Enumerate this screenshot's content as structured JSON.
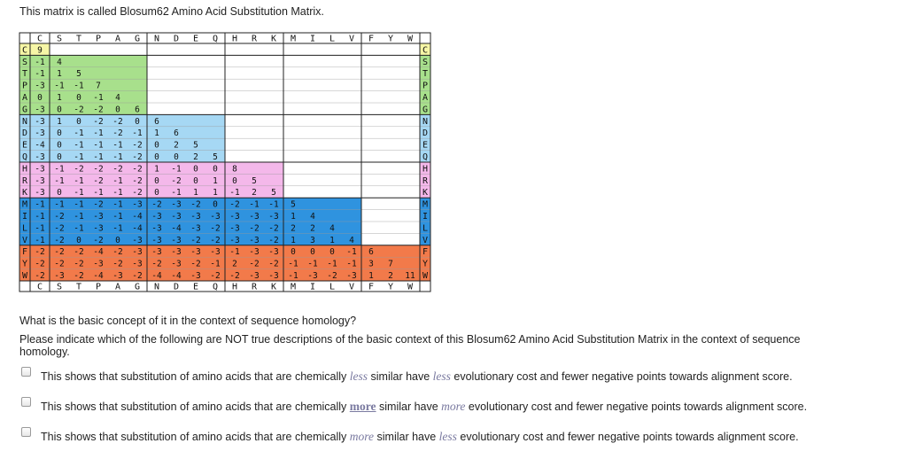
{
  "intro": "This matrix is called Blosum62 Amino Acid Substitution Matrix.",
  "matrix": {
    "order": [
      "C",
      "S",
      "T",
      "P",
      "A",
      "G",
      "N",
      "D",
      "E",
      "Q",
      "H",
      "R",
      "K",
      "M",
      "I",
      "L",
      "V",
      "F",
      "Y",
      "W"
    ],
    "rows": [
      [
        9
      ],
      [
        -1,
        4
      ],
      [
        -1,
        1,
        5
      ],
      [
        -3,
        -1,
        -1,
        7
      ],
      [
        0,
        1,
        0,
        -1,
        4
      ],
      [
        -3,
        0,
        -2,
        -2,
        0,
        6
      ],
      [
        -3,
        1,
        0,
        -2,
        -2,
        0,
        6
      ],
      [
        -3,
        0,
        -1,
        -1,
        -2,
        -1,
        1,
        6
      ],
      [
        -4,
        0,
        -1,
        -1,
        -1,
        -2,
        0,
        2,
        5
      ],
      [
        -3,
        0,
        -1,
        -1,
        -1,
        -2,
        0,
        0,
        2,
        5
      ],
      [
        -3,
        -1,
        -2,
        -2,
        -2,
        -2,
        1,
        -1,
        0,
        0,
        8
      ],
      [
        -3,
        -1,
        -1,
        -2,
        -1,
        -2,
        0,
        -2,
        0,
        1,
        0,
        5
      ],
      [
        -3,
        0,
        -1,
        -1,
        -1,
        -2,
        0,
        -1,
        1,
        1,
        -1,
        2,
        5
      ],
      [
        -1,
        -1,
        -1,
        -2,
        -1,
        -3,
        -2,
        -3,
        -2,
        0,
        -2,
        -1,
        -1,
        5
      ],
      [
        -1,
        -2,
        -1,
        -3,
        -1,
        -4,
        -3,
        -3,
        -3,
        -3,
        -3,
        -3,
        -3,
        1,
        4
      ],
      [
        -1,
        -2,
        -1,
        -3,
        -1,
        -4,
        -3,
        -4,
        -3,
        -2,
        -3,
        -2,
        -2,
        2,
        2,
        4
      ],
      [
        -1,
        -2,
        0,
        -2,
        0,
        -3,
        -3,
        -3,
        -2,
        -2,
        -3,
        -3,
        -2,
        1,
        3,
        1,
        4
      ],
      [
        -2,
        -2,
        -2,
        -4,
        -2,
        -3,
        -3,
        -3,
        -3,
        -3,
        -1,
        -3,
        -3,
        0,
        0,
        0,
        -1,
        6
      ],
      [
        -2,
        -2,
        -2,
        -3,
        -2,
        -3,
        -2,
        -3,
        -2,
        -1,
        2,
        -2,
        -2,
        -1,
        -1,
        -1,
        -1,
        3,
        7
      ],
      [
        -2,
        -3,
        -2,
        -4,
        -3,
        -2,
        -4,
        -4,
        -3,
        -2,
        -2,
        -3,
        -3,
        -1,
        -3,
        -2,
        -3,
        1,
        2,
        11
      ]
    ],
    "group_colors": [
      "#f6f6a6",
      "#a8e08c",
      "#a6d8f4",
      "#f4b8ea",
      "#2f93df",
      "#f27a4a"
    ]
  },
  "question": "What is the basic concept of it in the context of sequence homology?",
  "instruction": "Please indicate which of the following are NOT true descriptions of the basic context of this Blosum62 Amino Acid Substitution Matrix in the context of sequence homology.",
  "options": [
    {
      "pre": "This shows that substitution of amino acids that are chemically ",
      "w1": "less",
      "mid": " similar have ",
      "w2": "less",
      "post": " evolutionary cost and fewer negative points towards alignment score."
    },
    {
      "pre": "This shows that substitution of amino acids that are chemically ",
      "w1": "more",
      "mid": " similar have ",
      "w2": "more",
      "post": " evolutionary cost and fewer negative points towards alignment score."
    },
    {
      "pre": "This shows that substitution of amino acids that are chemically ",
      "w1": "more",
      "mid": " similar have ",
      "w2": "less",
      "post": " evolutionary cost and fewer negative points towards alignment score."
    }
  ]
}
